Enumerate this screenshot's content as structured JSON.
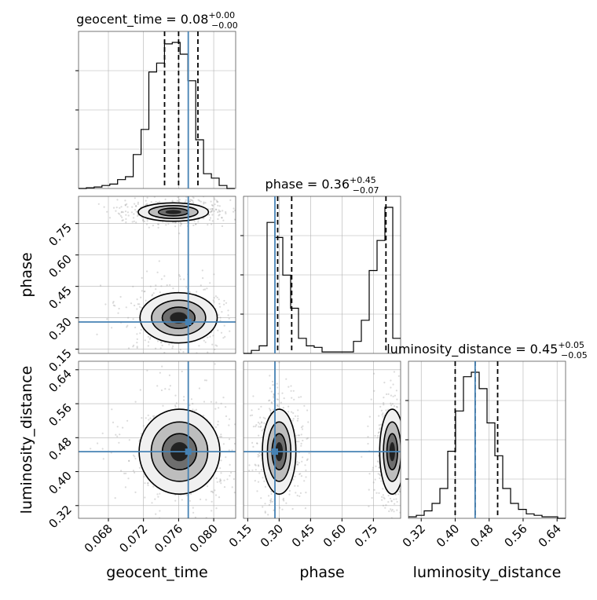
{
  "chart_data": [
    {
      "type": "histogram",
      "panel": "geocent_time marginal",
      "title_param": "geocent_time",
      "title_value": "0.08",
      "title_plus": "+0.00",
      "title_minus": "−0.00",
      "x_range": [
        0.0646,
        0.0825
      ],
      "bin_edges_start": 0.0646,
      "bin_width": 0.00089,
      "counts": [
        0,
        0.005,
        0.01,
        0.02,
        0.03,
        0.06,
        0.08,
        0.23,
        0.4,
        0.79,
        0.85,
        0.98,
        0.99,
        0.91,
        0.73,
        0.33,
        0.1,
        0.07,
        0.02,
        0.0
      ],
      "quantiles": [
        0.0744,
        0.076,
        0.0782
      ],
      "truth": 0.0771,
      "y_grid_fracs": [
        0.25,
        0.5,
        0.75
      ]
    },
    {
      "type": "histogram",
      "panel": "phase marginal",
      "title_param": "phase",
      "title_value": "0.36",
      "title_plus": "+0.45",
      "title_minus": "−0.07",
      "x_range": [
        0.13,
        0.88
      ],
      "bin_edges_start": 0.13,
      "bin_width": 0.0375,
      "counts": [
        0.0,
        0.02,
        0.05,
        0.87,
        0.77,
        0.52,
        0.3,
        0.1,
        0.05,
        0.04,
        0.01,
        0.01,
        0.01,
        0.01,
        0.08,
        0.22,
        0.55,
        0.75,
        0.97,
        0.1
      ],
      "quantiles": [
        0.293,
        0.36,
        0.81
      ],
      "truth": 0.28,
      "y_grid_fracs": [
        0.25,
        0.5,
        0.75
      ]
    },
    {
      "type": "histogram",
      "panel": "luminosity_distance marginal",
      "title_param": "luminosity_distance",
      "title_value": "0.45",
      "title_plus": "+0.05",
      "title_minus": "−0.05",
      "x_range": [
        0.29,
        0.66
      ],
      "bin_edges_start": 0.29,
      "bin_width": 0.0185,
      "counts": [
        0.01,
        0.02,
        0.05,
        0.1,
        0.2,
        0.45,
        0.72,
        0.95,
        0.98,
        0.87,
        0.64,
        0.42,
        0.2,
        0.1,
        0.06,
        0.03,
        0.02,
        0.01,
        0.01,
        0.0
      ],
      "quantiles": [
        0.4,
        0.447,
        0.5
      ],
      "truth": 0.447,
      "y_grid_fracs": [
        0.25,
        0.5,
        0.75
      ]
    },
    {
      "type": "contour",
      "panel": "phase vs geocent_time",
      "x_param": "geocent_time",
      "y_param": "phase",
      "x_range": [
        0.0646,
        0.0825
      ],
      "y_range": [
        0.13,
        0.88
      ],
      "truth": {
        "x": 0.0771,
        "y": 0.28
      },
      "modes": [
        {
          "cx": 0.076,
          "cy": 0.3,
          "sx": 0.0022,
          "sy": 0.06
        },
        {
          "cx": 0.0754,
          "cy": 0.805,
          "sx": 0.002,
          "sy": 0.022
        }
      ]
    },
    {
      "type": "contour",
      "panel": "luminosity_distance vs geocent_time",
      "x_param": "geocent_time",
      "y_param": "luminosity_distance",
      "x_range": [
        0.0646,
        0.0825
      ],
      "y_range": [
        0.29,
        0.66
      ],
      "truth": {
        "x": 0.0771,
        "y": 0.447
      },
      "modes": [
        {
          "cx": 0.0761,
          "cy": 0.447,
          "sx": 0.0023,
          "sy": 0.05
        }
      ]
    },
    {
      "type": "contour",
      "panel": "luminosity_distance vs phase",
      "x_param": "phase",
      "y_param": "luminosity_distance",
      "x_range": [
        0.13,
        0.88
      ],
      "y_range": [
        0.29,
        0.66
      ],
      "truth": {
        "x": 0.28,
        "y": 0.447
      },
      "modes": [
        {
          "cx": 0.3,
          "cy": 0.447,
          "sx": 0.04,
          "sy": 0.05
        },
        {
          "cx": 0.84,
          "cy": 0.447,
          "sx": 0.03,
          "sy": 0.05
        }
      ]
    }
  ],
  "axes": {
    "geocent_time": {
      "label": "geocent_time",
      "ticks": [
        "0.068",
        "0.072",
        "0.076",
        "0.080"
      ]
    },
    "phase": {
      "label": "phase",
      "ticks": [
        "0.15",
        "0.30",
        "0.45",
        "0.60",
        "0.75"
      ]
    },
    "luminosity_distance": {
      "label": "luminosity_distance",
      "ticks": [
        "0.32",
        "0.40",
        "0.48",
        "0.56",
        "0.64"
      ]
    }
  },
  "colors": {
    "truth": "#4682b4",
    "hist": "#000000",
    "grid": "#b0b0b0",
    "quantile": "#000000"
  }
}
